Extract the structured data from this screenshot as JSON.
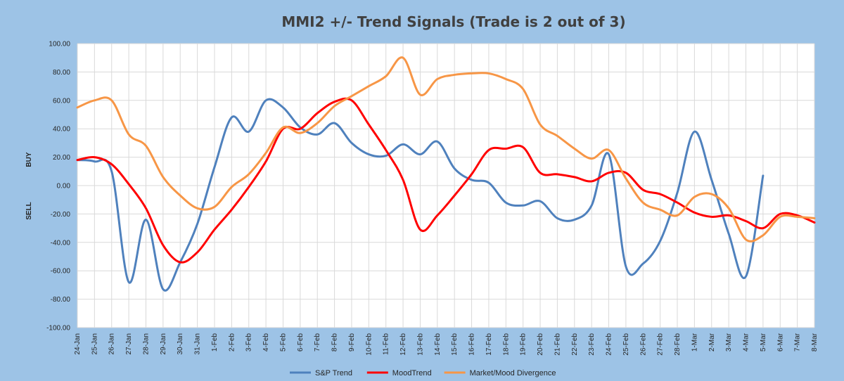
{
  "chart_data": {
    "type": "line",
    "title": "MMI2 +/- Trend Signals (Trade is 2 out of 3)",
    "ylabel_top": "BUY",
    "ylabel_bottom": "SELL",
    "ylim": [
      -100,
      100
    ],
    "ytick_step": 20,
    "ytick_labels": [
      "100.00",
      "80.00",
      "60.00",
      "40.00",
      "20.00",
      "0.00",
      "-20.00",
      "-40.00",
      "-60.00",
      "-80.00",
      "-100.00"
    ],
    "grid": true,
    "legend_position": "bottom",
    "categories": [
      "24-Jan",
      "25-Jan",
      "26-Jan",
      "27-Jan",
      "28-Jan",
      "29-Jan",
      "30-Jan",
      "31-Jan",
      "1-Feb",
      "2-Feb",
      "3-Feb",
      "4-Feb",
      "5-Feb",
      "6-Feb",
      "7-Feb",
      "8-Feb",
      "9-Feb",
      "10-Feb",
      "11-Feb",
      "12-Feb",
      "13-Feb",
      "14-Feb",
      "15-Feb",
      "16-Feb",
      "17-Feb",
      "18-Feb",
      "19-Feb",
      "20-Feb",
      "21-Feb",
      "22-Feb",
      "23-Feb",
      "24-Feb",
      "25-Feb",
      "26-Feb",
      "27-Feb",
      "28-Feb",
      "1-Mar",
      "2-Mar",
      "3-Mar",
      "4-Mar",
      "5-Mar",
      "6-Mar",
      "7-Mar",
      "8-Mar"
    ],
    "series": [
      {
        "name": "S&P Trend",
        "color": "#4f81bd",
        "values": [
          18,
          17,
          10,
          -68,
          -24,
          -73,
          -54,
          -27,
          13,
          48,
          38,
          60,
          55,
          41,
          36,
          44,
          30,
          22,
          21,
          29,
          22,
          31,
          12,
          4,
          2,
          -12,
          -14,
          -11,
          -23,
          -24,
          -14,
          22,
          -57,
          -55,
          -39,
          -5,
          38,
          4,
          -34,
          -64,
          7,
          null,
          null,
          null
        ]
      },
      {
        "name": "MoodTrend",
        "color": "#ff0000",
        "values": [
          18,
          20,
          15,
          1,
          -16,
          -42,
          -54,
          -47,
          -31,
          -17,
          -1,
          17,
          40,
          40,
          51,
          59,
          60,
          43,
          25,
          4,
          -31,
          -21,
          -7,
          8,
          25,
          26,
          27,
          9,
          8,
          6,
          3,
          9,
          9,
          -3,
          -6,
          -12,
          -19,
          -22,
          -21,
          -25,
          -30,
          -20,
          -21,
          -26
        ]
      },
      {
        "name": "Market/Mood Divergence",
        "color": "#f79646",
        "values": [
          55,
          60,
          60,
          36,
          28,
          6,
          -7,
          -16,
          -15,
          -1,
          8,
          23,
          41,
          37,
          44,
          56,
          63,
          70,
          77,
          90,
          64,
          75,
          78,
          79,
          79,
          75,
          68,
          43,
          35,
          26,
          19,
          25,
          5,
          -12,
          -17,
          -21,
          -8,
          -6,
          -16,
          -38,
          -35,
          -22,
          -22,
          -23
        ]
      }
    ]
  }
}
